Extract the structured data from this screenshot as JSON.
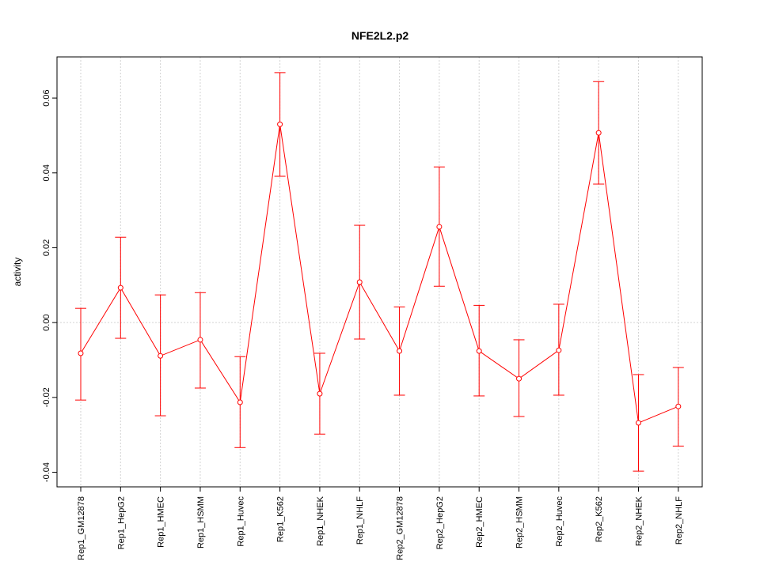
{
  "chart_data": {
    "type": "line",
    "title": "NFE2L2.p2",
    "xlabel": "",
    "ylabel": "activity",
    "ylim": [
      -0.0439,
      0.071
    ],
    "yticks": [
      -0.04,
      -0.02,
      0.0,
      0.02,
      0.04,
      0.06
    ],
    "ytick_labels": [
      "-0.04",
      "-0.02",
      "0.00",
      "0.02",
      "0.04",
      "0.06"
    ],
    "grid": true,
    "categories": [
      "Rep1_GM12878",
      "Rep1_HepG2",
      "Rep1_HMEC",
      "Rep1_HSMM",
      "Rep1_Huvec",
      "Rep1_K562",
      "Rep1_NHEK",
      "Rep1_NHLF",
      "Rep2_GM12878",
      "Rep2_HepG2",
      "Rep2_HMEC",
      "Rep2_HSMM",
      "Rep2_Huvec",
      "Rep2_K562",
      "Rep2_NHEK",
      "Rep2_NHLF"
    ],
    "values": [
      -0.0082,
      0.0093,
      -0.0089,
      -0.0046,
      -0.0213,
      0.053,
      -0.019,
      0.0108,
      -0.0076,
      0.0256,
      -0.0076,
      -0.015,
      -0.0074,
      0.0507,
      -0.0268,
      -0.0224
    ],
    "upper": [
      0.0038,
      0.0228,
      0.0074,
      0.008,
      -0.0091,
      0.0668,
      -0.0082,
      0.026,
      0.0042,
      0.0416,
      0.0046,
      -0.0046,
      0.0049,
      0.0644,
      -0.0139,
      -0.012
    ],
    "lower": [
      -0.0207,
      -0.0042,
      -0.0249,
      -0.0175,
      -0.0334,
      0.0391,
      -0.0298,
      -0.0044,
      -0.0194,
      0.0097,
      -0.0196,
      -0.0251,
      -0.0194,
      0.037,
      -0.0397,
      -0.033
    ],
    "colors": {
      "series": "#ff0000",
      "grid": "#d3d3d3",
      "axis": "#000000"
    }
  }
}
